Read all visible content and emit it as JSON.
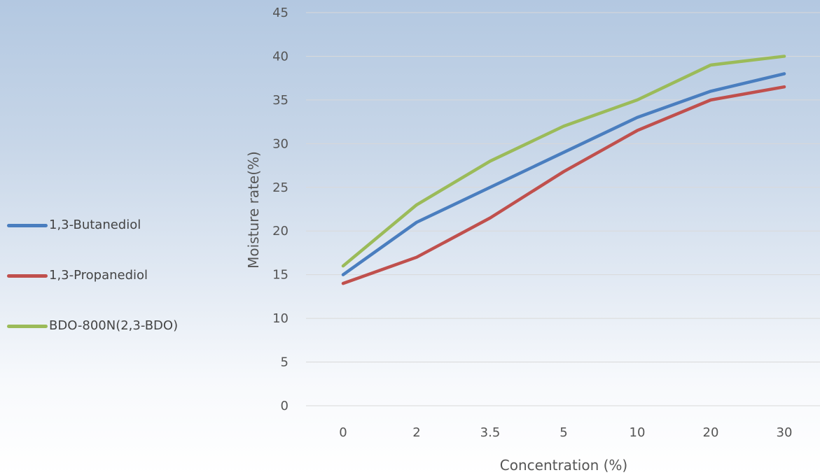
{
  "chart_data": {
    "type": "line",
    "categories": [
      "0",
      "2",
      "3.5",
      "5",
      "10",
      "20",
      "30"
    ],
    "series": [
      {
        "name": "1,3-Butanediol",
        "values": [
          15,
          21,
          25,
          29,
          33,
          36,
          38
        ],
        "color": "#4a7ebf"
      },
      {
        "name": "1,3-Propanediol",
        "values": [
          14,
          17,
          21.5,
          26.8,
          31.5,
          35,
          36.5
        ],
        "color": "#c0504d"
      },
      {
        "name": "BDO-800N(2,3-BDO)",
        "values": [
          16,
          23,
          28,
          32,
          35,
          39,
          40
        ],
        "color": "#9bbb59"
      }
    ],
    "xlabel": "Concentration (%)",
    "ylabel": "Moisture rate(%)",
    "ylim": [
      0,
      45
    ],
    "yticks": [
      "0",
      "5",
      "10",
      "15",
      "20",
      "25",
      "30",
      "35",
      "40",
      "45"
    ],
    "grid": true,
    "legend_position": "left"
  }
}
